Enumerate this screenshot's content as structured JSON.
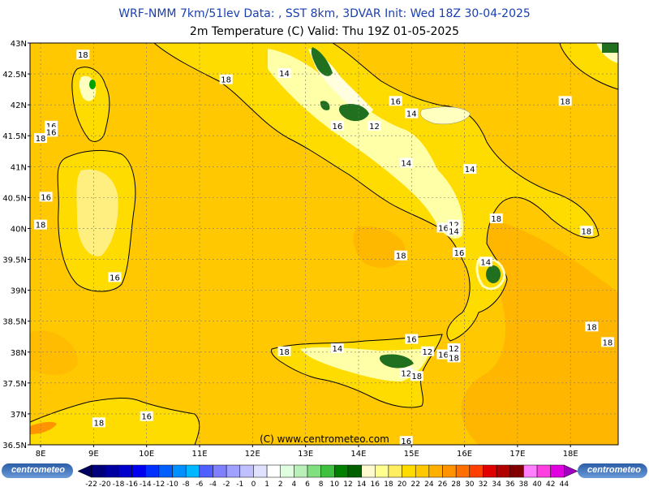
{
  "header": {
    "line1": "WRF-NMM 7km/51lev  Data: , SST 8km, 3DVAR  Init: Wed 18Z 30-04-2025",
    "line2": "2m Temperature (C)  Valid: Thu 19Z 01-05-2025"
  },
  "map": {
    "type": "heatmap",
    "variable": "2m Temperature",
    "unit": "C",
    "lon_labels": [
      "8E",
      "9E",
      "10E",
      "11E",
      "12E",
      "13E",
      "14E",
      "15E",
      "16E",
      "17E",
      "18E"
    ],
    "lat_labels": [
      "43N",
      "42.5N",
      "42N",
      "41.5N",
      "41N",
      "40.5N",
      "40N",
      "39.5N",
      "39N",
      "38.5N",
      "38N",
      "37.5N",
      "37N",
      "36.5N"
    ],
    "lon_range": [
      7.8,
      18.9
    ],
    "lat_range": [
      36.5,
      43.0
    ],
    "grid": true,
    "contour_labels": [
      {
        "text": "18",
        "lon": 8.8,
        "lat": 42.8
      },
      {
        "text": "18",
        "lon": 11.5,
        "lat": 42.4
      },
      {
        "text": "14",
        "lon": 12.6,
        "lat": 42.5
      },
      {
        "text": "16",
        "lon": 8.2,
        "lat": 41.65
      },
      {
        "text": "16",
        "lon": 8.2,
        "lat": 41.55
      },
      {
        "text": "18",
        "lon": 8.0,
        "lat": 41.45
      },
      {
        "text": "16",
        "lon": 8.1,
        "lat": 40.5
      },
      {
        "text": "18",
        "lon": 8.0,
        "lat": 40.05
      },
      {
        "text": "16",
        "lon": 9.4,
        "lat": 39.2
      },
      {
        "text": "16",
        "lon": 13.6,
        "lat": 41.65
      },
      {
        "text": "12",
        "lon": 14.3,
        "lat": 41.65
      },
      {
        "text": "16",
        "lon": 14.7,
        "lat": 42.05
      },
      {
        "text": "14",
        "lon": 15.0,
        "lat": 41.85
      },
      {
        "text": "14",
        "lon": 14.9,
        "lat": 41.05
      },
      {
        "text": "14",
        "lon": 16.1,
        "lat": 40.95
      },
      {
        "text": "12",
        "lon": 15.8,
        "lat": 40.05
      },
      {
        "text": "16",
        "lon": 15.6,
        "lat": 40.0
      },
      {
        "text": "14",
        "lon": 15.8,
        "lat": 39.95
      },
      {
        "text": "18",
        "lon": 16.6,
        "lat": 40.15
      },
      {
        "text": "16",
        "lon": 15.9,
        "lat": 39.6
      },
      {
        "text": "14",
        "lon": 16.4,
        "lat": 39.45
      },
      {
        "text": "18",
        "lon": 17.9,
        "lat": 42.05
      },
      {
        "text": "18",
        "lon": 18.3,
        "lat": 39.95
      },
      {
        "text": "18",
        "lon": 14.8,
        "lat": 39.55
      },
      {
        "text": "18",
        "lon": 18.4,
        "lat": 38.4
      },
      {
        "text": "18",
        "lon": 18.7,
        "lat": 38.15
      },
      {
        "text": "16",
        "lon": 15.0,
        "lat": 38.2
      },
      {
        "text": "12",
        "lon": 15.3,
        "lat": 38.0
      },
      {
        "text": "12",
        "lon": 15.8,
        "lat": 38.05
      },
      {
        "text": "16",
        "lon": 15.6,
        "lat": 37.95
      },
      {
        "text": "18",
        "lon": 15.8,
        "lat": 37.9
      },
      {
        "text": "14",
        "lon": 13.6,
        "lat": 38.05
      },
      {
        "text": "18",
        "lon": 12.6,
        "lat": 38.0
      },
      {
        "text": "12",
        "lon": 14.9,
        "lat": 37.65
      },
      {
        "text": "18",
        "lon": 15.1,
        "lat": 37.6
      },
      {
        "text": "16",
        "lon": 10.0,
        "lat": 36.95
      },
      {
        "text": "18",
        "lon": 9.1,
        "lat": 36.85
      },
      {
        "text": "16",
        "lon": 14.9,
        "lat": 36.55
      }
    ],
    "copyright": "(C) www.centrometeo.com"
  },
  "colorbar": {
    "logo_left": "centrometeo",
    "logo_right": "centrometeo",
    "ticks": [
      "-22",
      "-20",
      "-18",
      "-16",
      "-14",
      "-12",
      "-10",
      "-8",
      "-6",
      "-4",
      "-2",
      "-1",
      "0",
      "1",
      "2",
      "4",
      "6",
      "8",
      "10",
      "12",
      "14",
      "16",
      "18",
      "20",
      "22",
      "24",
      "26",
      "28",
      "30",
      "32",
      "34",
      "36",
      "38",
      "40",
      "42",
      "44"
    ],
    "colors": [
      "#000060",
      "#00007a",
      "#0000a0",
      "#0000cc",
      "#0000f0",
      "#0030ff",
      "#0060ff",
      "#0090ff",
      "#00b8ff",
      "#5060ff",
      "#8080ff",
      "#a0a0ff",
      "#c0c0ff",
      "#e0e0ff",
      "#ffffff",
      "#e0ffe0",
      "#b8f0b8",
      "#80e080",
      "#40c040",
      "#008000",
      "#006000",
      "#fffad0",
      "#ffff90",
      "#ffee60",
      "#ffdc00",
      "#ffc800",
      "#ffb000",
      "#ff9400",
      "#ff7000",
      "#ff4000",
      "#e00000",
      "#b00000",
      "#800000",
      "#ff80ff",
      "#ff40e0",
      "#e000e0",
      "#a000c0"
    ],
    "base_color": "#ffc800"
  }
}
